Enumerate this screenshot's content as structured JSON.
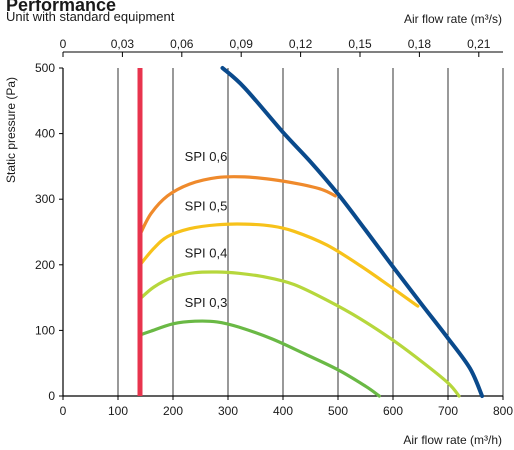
{
  "title": "Performance",
  "subtitle": "Unit with standard equipment",
  "chart_data": {
    "type": "line",
    "xlabel": "Air flow rate (m³/h)",
    "x2label": "Air flow rate (m³/s)",
    "ylabel": "Static pressure (Pa)",
    "xlim": [
      0,
      800
    ],
    "ylim": [
      0,
      500
    ],
    "x_ticks": [
      0,
      100,
      200,
      300,
      400,
      500,
      600,
      700,
      800
    ],
    "y_ticks": [
      0,
      100,
      200,
      300,
      400,
      500
    ],
    "x2_ticks": [
      {
        "label": "0",
        "value": 0
      },
      {
        "label": "0,03",
        "value": 0.03
      },
      {
        "label": "0,06",
        "value": 0.06
      },
      {
        "label": "0,09",
        "value": 0.09
      },
      {
        "label": "0,12",
        "value": 0.12
      },
      {
        "label": "0,15",
        "value": 0.15
      },
      {
        "label": "0,18",
        "value": 0.18
      },
      {
        "label": "0,21",
        "value": 0.21
      }
    ],
    "grid": "vertical",
    "limit_line": {
      "x": 140,
      "y_range": [
        0,
        500
      ],
      "color": "#e8344e"
    },
    "series": [
      {
        "name": "",
        "color": "#0a4a8c",
        "points": [
          [
            290,
            500
          ],
          [
            330,
            470
          ],
          [
            400,
            402
          ],
          [
            450,
            357
          ],
          [
            500,
            308
          ],
          [
            550,
            253
          ],
          [
            600,
            197
          ],
          [
            650,
            142
          ],
          [
            700,
            88
          ],
          [
            740,
            42
          ],
          [
            762,
            0
          ]
        ]
      },
      {
        "name": "SPI 0,6",
        "color": "#ef8a2c",
        "points": [
          [
            140,
            246
          ],
          [
            160,
            278
          ],
          [
            190,
            305
          ],
          [
            230,
            323
          ],
          [
            280,
            333
          ],
          [
            330,
            334
          ],
          [
            380,
            330
          ],
          [
            430,
            323
          ],
          [
            470,
            315
          ],
          [
            495,
            305
          ]
        ]
      },
      {
        "name": "SPI 0,5",
        "color": "#f7c21a",
        "points": [
          [
            140,
            200
          ],
          [
            165,
            225
          ],
          [
            190,
            243
          ],
          [
            230,
            255
          ],
          [
            280,
            261
          ],
          [
            330,
            262
          ],
          [
            380,
            259
          ],
          [
            420,
            251
          ],
          [
            480,
            230
          ],
          [
            540,
            199
          ],
          [
            600,
            164
          ],
          [
            645,
            137
          ]
        ]
      },
      {
        "name": "SPI 0,4",
        "color": "#b6d73c",
        "points": [
          [
            140,
            148
          ],
          [
            165,
            166
          ],
          [
            200,
            181
          ],
          [
            240,
            188
          ],
          [
            280,
            189
          ],
          [
            320,
            187
          ],
          [
            370,
            181
          ],
          [
            420,
            170
          ],
          [
            480,
            146
          ],
          [
            540,
            118
          ],
          [
            600,
            85
          ],
          [
            650,
            54
          ],
          [
            700,
            20
          ],
          [
            720,
            0
          ]
        ]
      },
      {
        "name": "SPI 0,3",
        "color": "#6ab945",
        "points": [
          [
            140,
            93
          ],
          [
            160,
            99
          ],
          [
            200,
            110
          ],
          [
            240,
            114
          ],
          [
            280,
            113
          ],
          [
            320,
            105
          ],
          [
            380,
            87
          ],
          [
            440,
            64
          ],
          [
            500,
            40
          ],
          [
            550,
            15
          ],
          [
            575,
            0
          ]
        ]
      }
    ],
    "annotations": [
      {
        "text": "SPI 0,6",
        "x": 260,
        "y": 358
      },
      {
        "text": "SPI 0,5",
        "x": 260,
        "y": 283
      },
      {
        "text": "SPI 0,4",
        "x": 260,
        "y": 211
      },
      {
        "text": "SPI 0,3",
        "x": 260,
        "y": 136
      }
    ]
  }
}
